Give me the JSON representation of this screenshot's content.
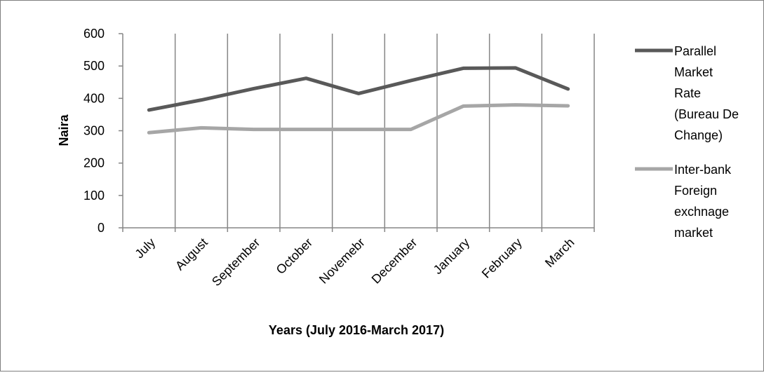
{
  "chart_data": {
    "type": "line",
    "categories": [
      "July",
      "August",
      "September",
      "October",
      "Novemebr",
      "December",
      "January",
      "February",
      "March"
    ],
    "series": [
      {
        "name": "Parallel Market Rate (Bureau De Change)",
        "legend_lines": [
          "Parallel",
          "Market",
          "Rate",
          "(Bureau De",
          "Change)"
        ],
        "values": [
          364,
          395,
          430,
          462,
          415,
          455,
          493,
          494,
          429
        ],
        "color": "#595959"
      },
      {
        "name": "Inter-bank Foreign exchnage market",
        "legend_lines": [
          "Inter-bank",
          "Foreign",
          "exchnage",
          "market"
        ],
        "values": [
          294,
          309,
          304,
          304,
          304,
          304,
          376,
          380,
          377
        ],
        "color": "#a6a6a6"
      }
    ],
    "title": "",
    "xlabel": "Years (July 2016-March 2017)",
    "ylabel": "Naira",
    "ylim": [
      0,
      600
    ],
    "yticks": [
      0,
      100,
      200,
      300,
      400,
      500,
      600
    ],
    "grid": "vertical",
    "legend_position": "right"
  }
}
